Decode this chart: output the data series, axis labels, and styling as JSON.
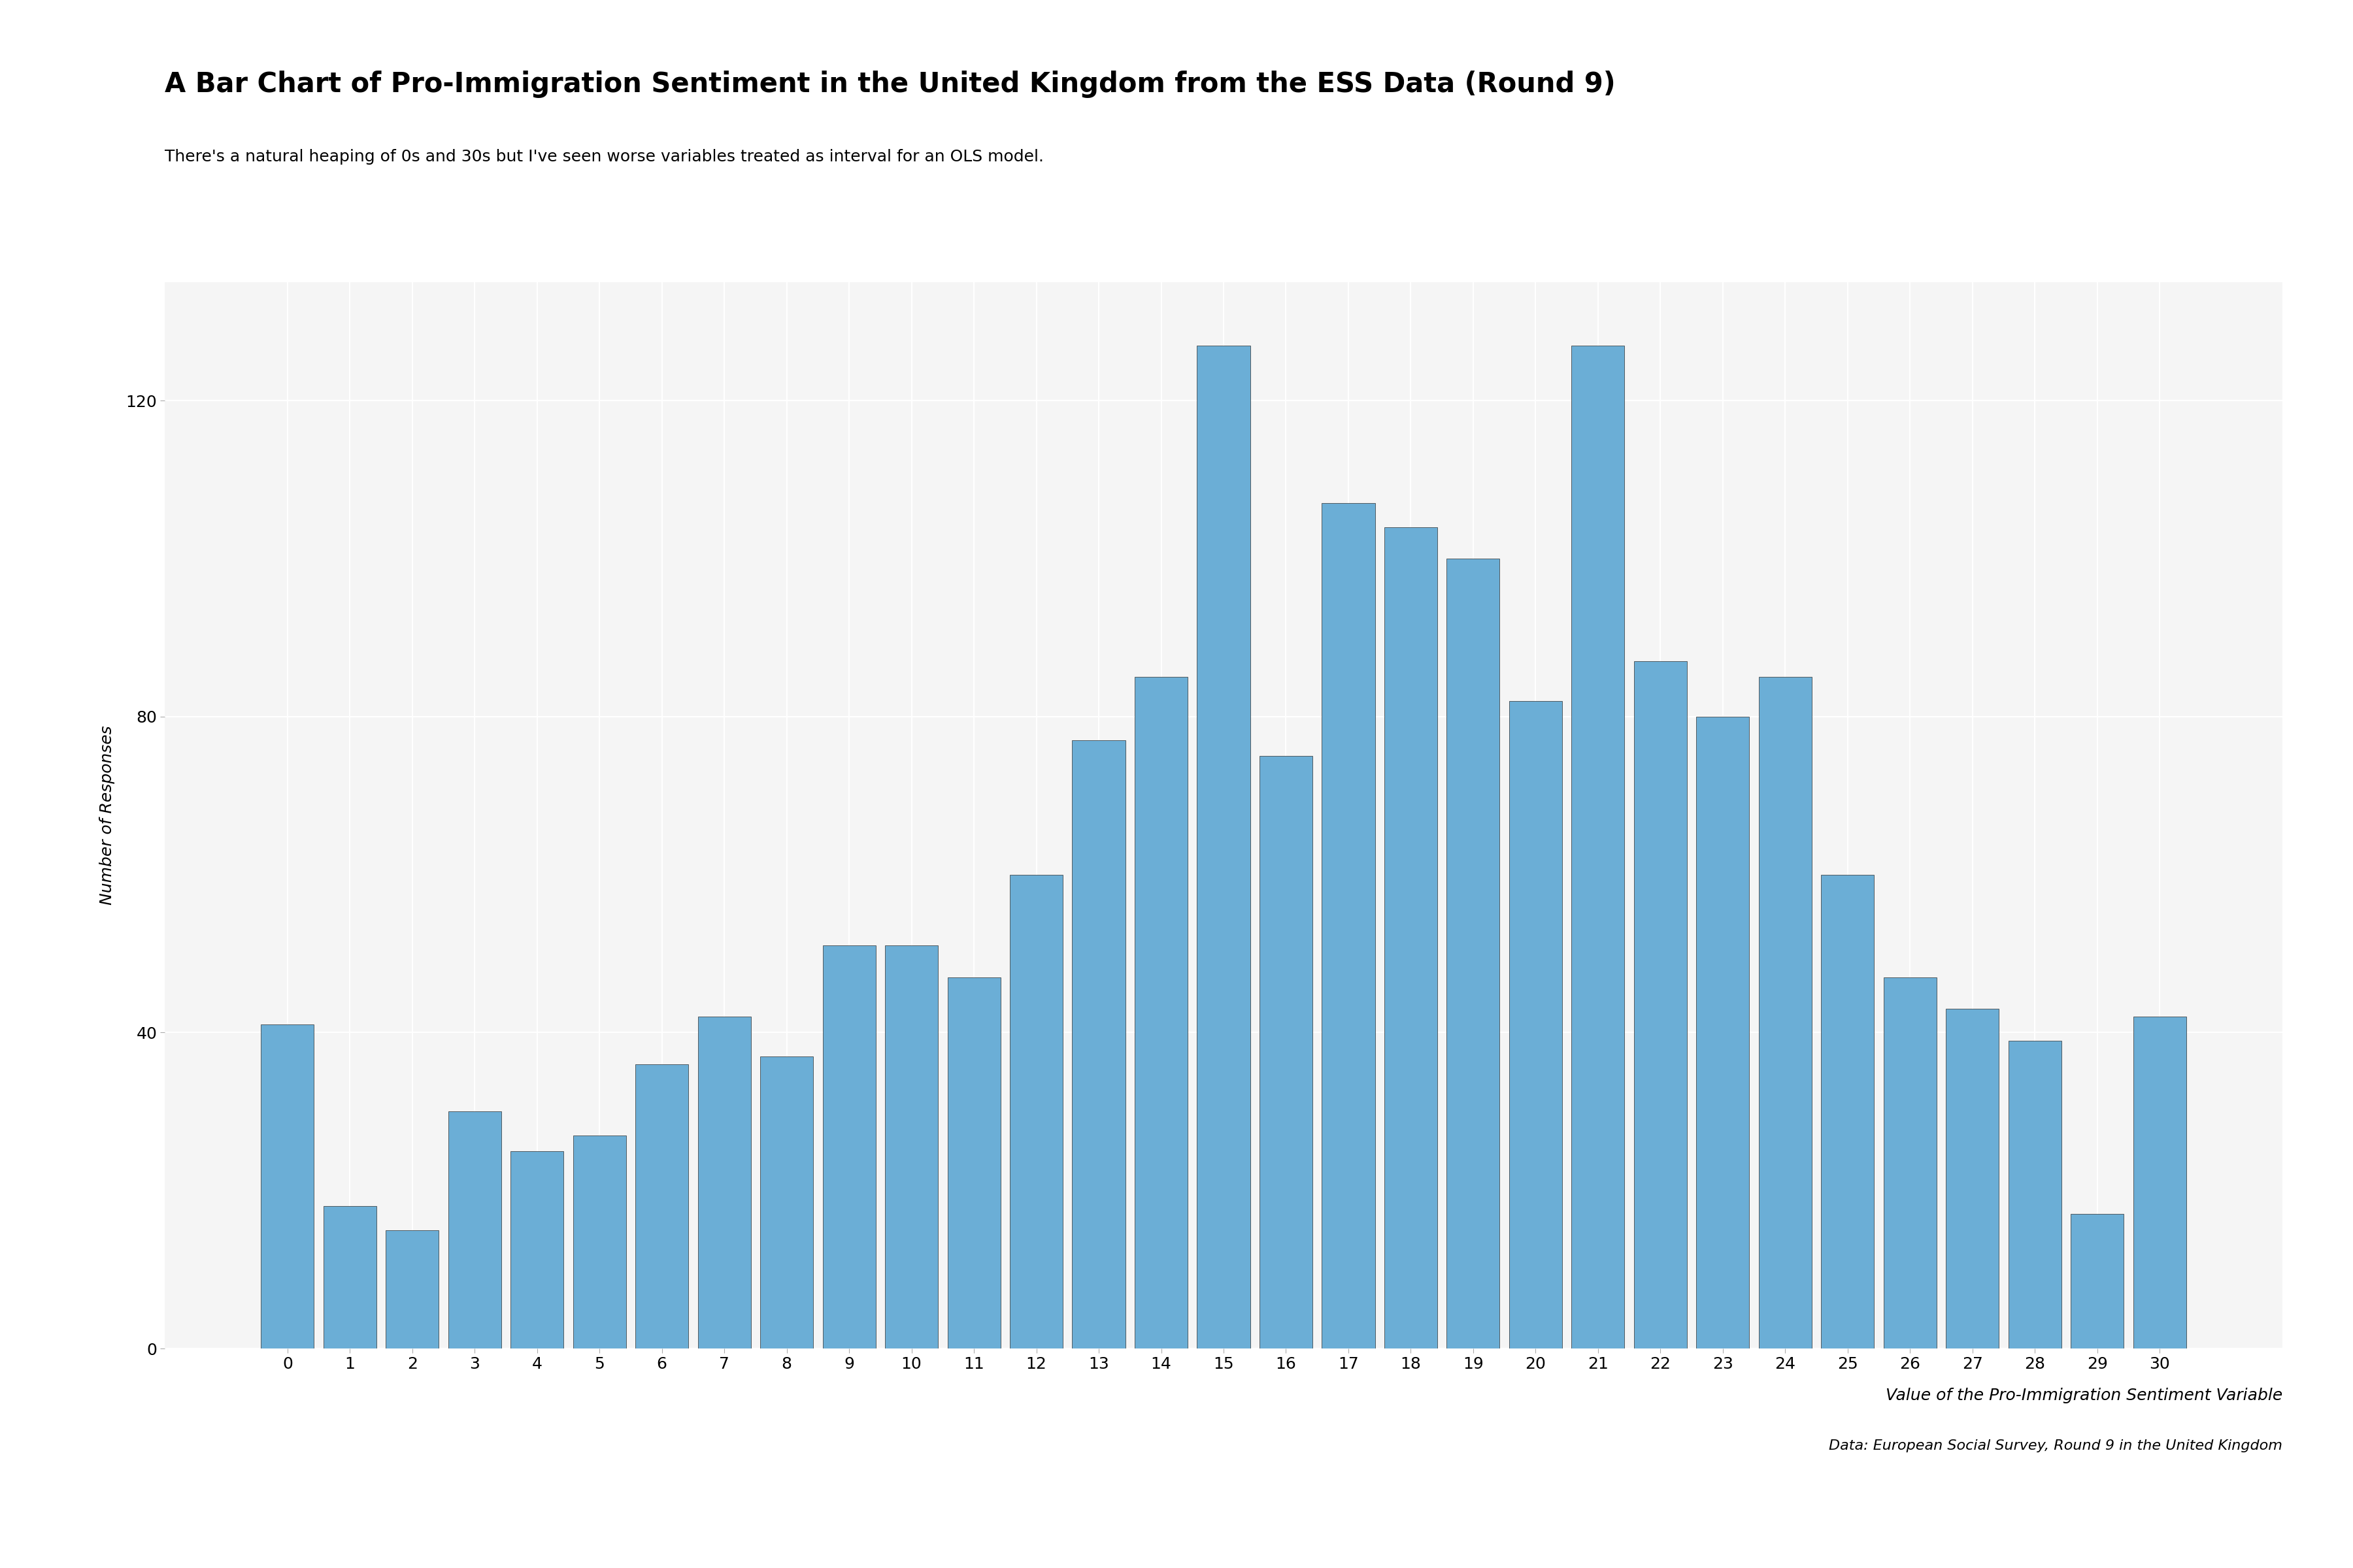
{
  "title": "A Bar Chart of Pro-Immigration Sentiment in the United Kingdom from the ESS Data (Round 9)",
  "subtitle": "There's a natural heaping of 0s and 30s but I've seen worse variables treated as interval for an OLS model.",
  "xlabel": "Value of the Pro-Immigration Sentiment Variable",
  "ylabel": "Number of Responses",
  "source_note": "Data: European Social Survey, Round 9 in the United Kingdom",
  "categories": [
    0,
    1,
    2,
    3,
    4,
    5,
    6,
    7,
    8,
    9,
    10,
    11,
    12,
    13,
    14,
    15,
    16,
    17,
    18,
    19,
    20,
    21,
    22,
    23,
    24,
    25,
    26,
    27,
    28,
    29,
    30
  ],
  "values": [
    41,
    18,
    15,
    30,
    25,
    27,
    36,
    42,
    37,
    51,
    51,
    47,
    60,
    77,
    85,
    127,
    75,
    107,
    104,
    100,
    82,
    127,
    87,
    80,
    85,
    60,
    47,
    43,
    39,
    17,
    42
  ],
  "bar_color": "#6baed6",
  "bar_edge_color": "#2c2c2c",
  "bar_edge_width": 0.5,
  "background_color": "#ffffff",
  "panel_background": "#f5f5f5",
  "grid_color": "#ffffff",
  "ylim": [
    0,
    135
  ],
  "yticks": [
    0,
    40,
    80,
    120
  ],
  "title_fontsize": 30,
  "subtitle_fontsize": 18,
  "ylabel_fontsize": 18,
  "xlabel_fontsize": 18,
  "source_fontsize": 16,
  "tick_fontsize": 18
}
